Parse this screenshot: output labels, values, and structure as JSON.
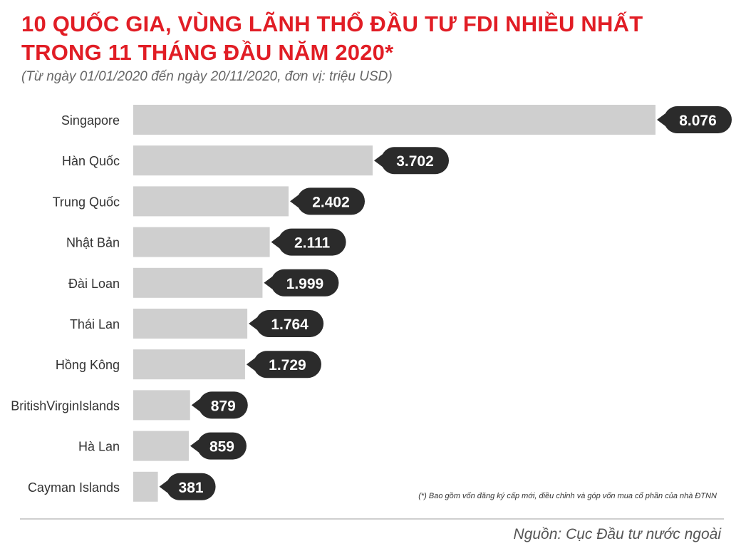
{
  "header": {
    "title_line1": "10 QUỐC GIA, VÙNG LÃNH THỔ ĐẦU TƯ FDI NHIỀU NHẤT",
    "title_line2": "TRONG 11 THÁNG ĐẦU NĂM 2020*",
    "subtitle": "(Từ ngày 01/01/2020 đến ngày 20/11/2020, đơn vị: triệu USD)"
  },
  "footer": {
    "footnote": "(*) Bao gồm vốn đăng ký cấp mới, điều chỉnh và góp vốn mua cổ phần của nhà ĐTNN",
    "source": "Nguồn: Cục Đầu tư nước ngoài"
  },
  "colors": {
    "title": "#e11d25",
    "bar": "#cfcfcf",
    "label_bubble": "#2b2b2b",
    "label_text": "#ffffff"
  },
  "chart_data": {
    "type": "bar",
    "orientation": "horizontal",
    "categories": [
      "Singapore",
      "Hàn Quốc",
      "Trung Quốc",
      "Nhật Bản",
      "Đài Loan",
      "Thái Lan",
      "Hồng Kông",
      "BritishVirginIslands",
      "Hà Lan",
      "Cayman Islands"
    ],
    "values": [
      8076,
      3702,
      2402,
      2111,
      1999,
      1764,
      1729,
      879,
      859,
      381
    ],
    "value_labels": [
      "8.076",
      "3.702",
      "2.402",
      "2.111",
      "1.999",
      "1.764",
      "1.729",
      "879",
      "859",
      "381"
    ],
    "grid": false,
    "legend": "none"
  }
}
